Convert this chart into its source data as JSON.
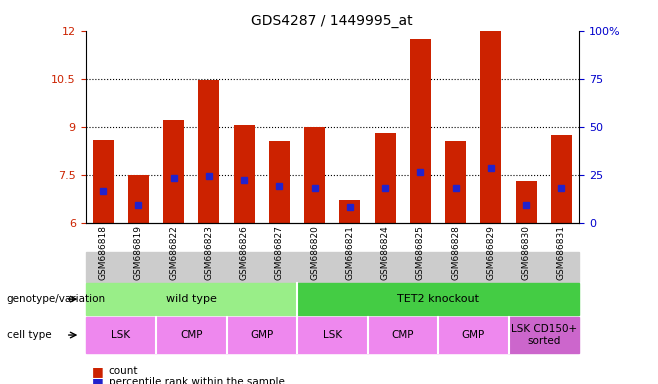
{
  "title": "GDS4287 / 1449995_at",
  "samples": [
    "GSM686818",
    "GSM686819",
    "GSM686822",
    "GSM686823",
    "GSM686826",
    "GSM686827",
    "GSM686820",
    "GSM686821",
    "GSM686824",
    "GSM686825",
    "GSM686828",
    "GSM686829",
    "GSM686830",
    "GSM686831"
  ],
  "bar_heights": [
    8.6,
    7.5,
    9.2,
    10.45,
    9.05,
    8.55,
    9.0,
    6.7,
    8.8,
    11.75,
    8.55,
    12.0,
    7.3,
    8.75
  ],
  "blue_markers": [
    7.0,
    6.55,
    7.4,
    7.45,
    7.35,
    7.15,
    7.1,
    6.5,
    7.1,
    7.6,
    7.1,
    7.7,
    6.55,
    7.1
  ],
  "bar_bottom": 6.0,
  "ymin": 6.0,
  "ymax": 12.0,
  "yticks_left": [
    6,
    7.5,
    9,
    10.5,
    12
  ],
  "yticks_right": [
    0,
    25,
    50,
    75,
    100
  ],
  "bar_color": "#cc2200",
  "blue_color": "#2222cc",
  "genotype_groups": [
    {
      "label": "wild type",
      "start": 0,
      "end": 6,
      "color": "#99ee88"
    },
    {
      "label": "TET2 knockout",
      "start": 6,
      "end": 14,
      "color": "#44cc44"
    }
  ],
  "cell_type_groups": [
    {
      "label": "LSK",
      "start": 0,
      "end": 2,
      "color": "#ee88ee"
    },
    {
      "label": "CMP",
      "start": 2,
      "end": 4,
      "color": "#ee88ee"
    },
    {
      "label": "GMP",
      "start": 4,
      "end": 6,
      "color": "#ee88ee"
    },
    {
      "label": "LSK",
      "start": 6,
      "end": 8,
      "color": "#ee88ee"
    },
    {
      "label": "CMP",
      "start": 8,
      "end": 10,
      "color": "#ee88ee"
    },
    {
      "label": "GMP",
      "start": 10,
      "end": 12,
      "color": "#ee88ee"
    },
    {
      "label": "LSK CD150+\nsorted",
      "start": 12,
      "end": 14,
      "color": "#cc66cc"
    }
  ],
  "genotype_label": "genotype/variation",
  "celltype_label": "cell type",
  "legend_count": "count",
  "legend_percentile": "percentile rank within the sample",
  "bar_width": 0.6,
  "right_yaxis_color": "#0000cc",
  "left_yaxis_color": "#cc2200",
  "gray_bg": "#cccccc",
  "white": "#ffffff"
}
